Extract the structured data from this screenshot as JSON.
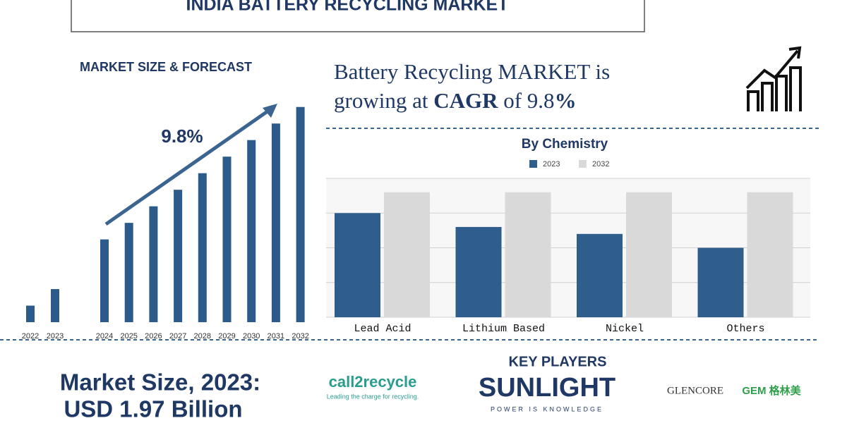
{
  "title": "INDIA BATTERY RECYCLING MARKET",
  "headline": {
    "line1": "Battery Recycling MARKET is",
    "line2_start": "growing at",
    "line2_bold": "CAGR",
    "line2_rest": "of 9.8",
    "line2_end": "%"
  },
  "chart_data": [
    {
      "type": "bar",
      "title": "MARKET SIZE & FORECAST",
      "annotation": "9.8%",
      "categories": [
        "2022",
        "2023",
        "2024",
        "2025",
        "2026",
        "2027",
        "2028",
        "2029",
        "2030",
        "2031",
        "2032"
      ],
      "values": [
        1,
        2,
        5,
        6,
        7,
        8,
        9,
        10,
        11,
        12,
        13
      ],
      "color": "#2c5a8a",
      "ylim": [
        0,
        13.5
      ]
    },
    {
      "type": "bar",
      "title": "By Chemistry",
      "categories": [
        "Lead Acid",
        "Lithium Based",
        "Nickel",
        "Others"
      ],
      "series": [
        {
          "name": "2023",
          "color": "#2f5d8c",
          "values": [
            3.0,
            2.6,
            2.4,
            2.0
          ]
        },
        {
          "name": "2032",
          "color": "#d9d9d9",
          "values": [
            3.6,
            3.6,
            3.6,
            3.6
          ]
        }
      ],
      "ylim": [
        0,
        4
      ],
      "yticks": [
        0,
        1,
        2,
        3,
        4
      ],
      "grid": true
    }
  ],
  "market_size": {
    "line1": "Market Size, 2023:",
    "line2": "USD 1.97 Billion"
  },
  "key_players": {
    "title": "KEY PLAYERS",
    "call2recycle": "call2recycle",
    "call2recycle_tagline": "Leading the charge for recycling.",
    "sunlight": "SUNLIGHT",
    "sunlight_tagline": "POWER IS KNOWLEDGE",
    "glencore": "GLENCORE",
    "gem": "GEM 格林美"
  }
}
